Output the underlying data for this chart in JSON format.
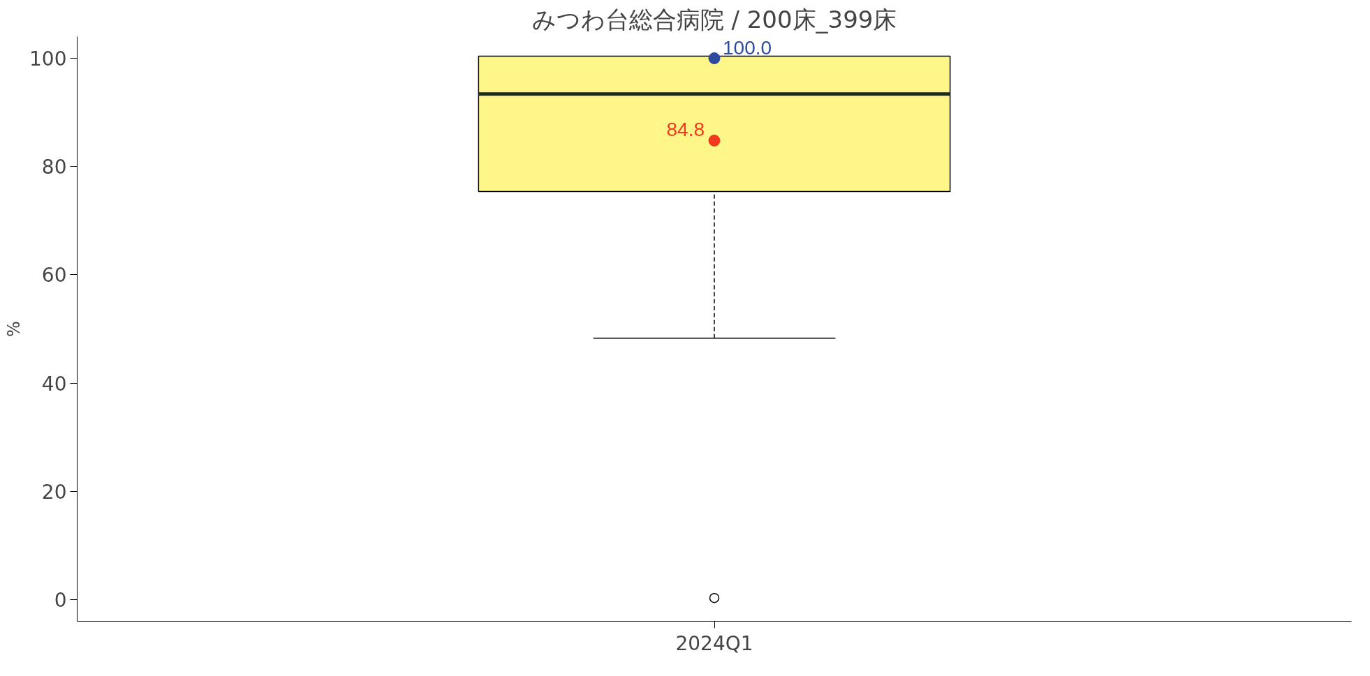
{
  "chart_data": {
    "type": "box",
    "title": "みつわ台総合病院 / 200床_399床",
    "ylabel": "%",
    "categories": [
      "2024Q1"
    ],
    "boxes": [
      {
        "low": 48.3,
        "q1": 75.4,
        "median": 93.4,
        "q3": 100.4,
        "high": 100.4,
        "outliers": [
          0.3
        ]
      }
    ],
    "color": "#fff68a",
    "series": [
      {
        "type": "scatter",
        "x": [
          "2024Q1"
        ],
        "values": [
          100.0
        ],
        "color": "#2e4a9e",
        "value_labels": [
          "100.0"
        ]
      },
      {
        "type": "scatter",
        "x": [
          "2024Q1"
        ],
        "values": [
          84.8
        ],
        "color": "#f03a1e",
        "value_labels": [
          "84.8"
        ]
      }
    ],
    "ylim": [
      -4,
      104
    ],
    "yticks": [
      0,
      20,
      40,
      60,
      80,
      100
    ],
    "grid": false,
    "marker": "circle"
  }
}
